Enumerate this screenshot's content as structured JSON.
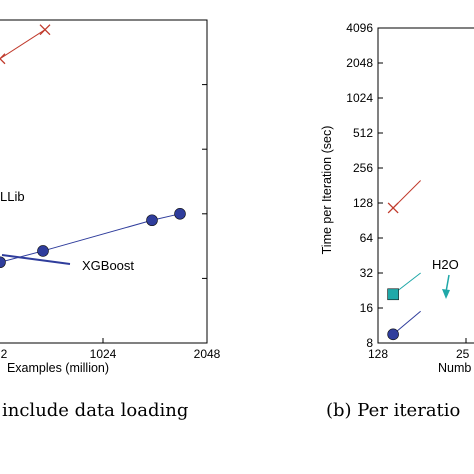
{
  "chart_data": [
    {
      "type": "line",
      "xlabel": "Examples (million)",
      "x_ticks": [
        "2",
        "1024",
        "2048"
      ],
      "caption": "include data loading",
      "annotations": [
        {
          "text": "LLib"
        },
        {
          "text": "XGBoost"
        }
      ],
      "series": [
        {
          "color": "#c0392b",
          "marker": "x",
          "points": [
            [
              0,
              0.88
            ],
            [
              45,
              0.97
            ]
          ]
        },
        {
          "color": "#2f3d9c",
          "marker": "circle",
          "points": [
            [
              0,
              0.25
            ],
            [
              43,
              0.285
            ],
            [
              152,
              0.38
            ],
            [
              180,
              0.4
            ]
          ]
        }
      ]
    },
    {
      "type": "line",
      "xlabel": "Numb",
      "ylabel": "Time per Iteration (sec)",
      "y_scale": "log2",
      "ylim": [
        8,
        4096
      ],
      "y_ticks": [
        "8",
        "16",
        "32",
        "64",
        "128",
        "256",
        "512",
        "1024",
        "2048",
        "4096"
      ],
      "x_ticks": [
        "128",
        "25"
      ],
      "caption": "(b) Per iteratio",
      "annotations": [
        {
          "text": "H2O"
        }
      ],
      "series": [
        {
          "color": "#c0392b",
          "marker": "x",
          "points": [
            [
              150,
              116
            ],
            [
              190,
              200
            ]
          ]
        },
        {
          "color": "#1fa8a8",
          "marker": "square",
          "points": [
            [
              150,
              21
            ],
            [
              190,
              32
            ]
          ]
        },
        {
          "color": "#2f3d9c",
          "marker": "circle",
          "points": [
            [
              150,
              9.5
            ],
            [
              190,
              15
            ]
          ]
        }
      ]
    }
  ]
}
